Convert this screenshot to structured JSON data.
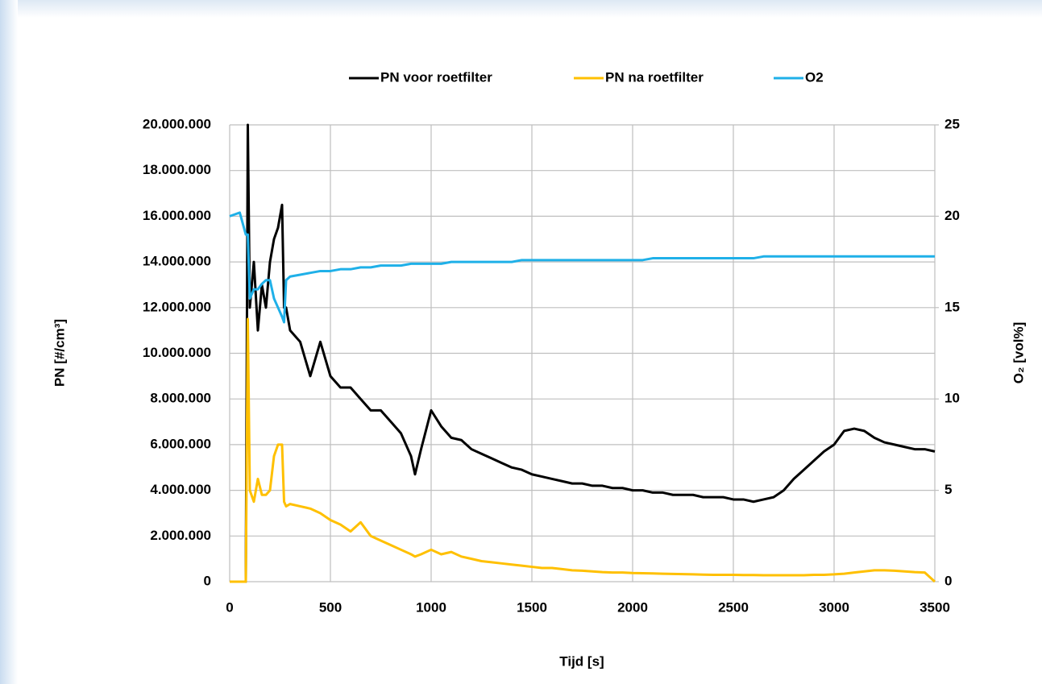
{
  "chart_data": {
    "type": "line",
    "x_label": "Tijd [s]",
    "y_label": "PN [#/cm³]",
    "y2_label": "O₂ [vol%]",
    "legend": "top",
    "grid": true,
    "xlim": [
      0,
      3500
    ],
    "xticks": [
      0,
      500,
      1000,
      1500,
      2000,
      2500,
      3000,
      3500
    ],
    "ylim": [
      0,
      20000000
    ],
    "yticks": [
      0,
      {
        "value": 2000000,
        "label": "2.000.000"
      },
      {
        "value": 4000000,
        "label": "4.000.000"
      },
      {
        "value": 6000000,
        "label": "6.000.000"
      },
      {
        "value": 8000000,
        "label": "8.000.000"
      },
      {
        "value": 10000000,
        "label": "10.000.000"
      },
      {
        "value": 12000000,
        "label": "12.000.000"
      },
      {
        "value": 14000000,
        "label": "14.000.000"
      },
      {
        "value": 16000000,
        "label": "16.000.000"
      },
      {
        "value": 18000000,
        "label": "18.000.000"
      },
      {
        "value": 20000000,
        "label": "20.000.000"
      }
    ],
    "y2lim": [
      0,
      25
    ],
    "y2ticks": [
      0,
      5,
      10,
      15,
      20,
      25
    ],
    "x": [
      0,
      50,
      80,
      90,
      100,
      120,
      140,
      160,
      180,
      200,
      220,
      240,
      260,
      270,
      280,
      300,
      350,
      400,
      450,
      500,
      550,
      600,
      650,
      700,
      750,
      800,
      850,
      900,
      920,
      950,
      1000,
      1050,
      1100,
      1150,
      1200,
      1250,
      1300,
      1350,
      1400,
      1450,
      1500,
      1550,
      1600,
      1650,
      1700,
      1750,
      1800,
      1850,
      1900,
      1950,
      2000,
      2050,
      2100,
      2150,
      2200,
      2250,
      2300,
      2350,
      2400,
      2450,
      2500,
      2550,
      2600,
      2650,
      2700,
      2750,
      2800,
      2850,
      2900,
      2950,
      3000,
      3050,
      3100,
      3150,
      3200,
      3250,
      3300,
      3350,
      3400,
      3450,
      3500
    ],
    "series": [
      {
        "name": "PN voor roetfilter",
        "color": "#000000",
        "values": [
          0,
          0,
          0,
          20000000,
          12000000,
          14000000,
          11000000,
          13000000,
          12000000,
          14000000,
          15000000,
          15500000,
          16500000,
          12000000,
          12000000,
          11000000,
          10500000,
          9000000,
          10500000,
          9000000,
          8500000,
          8500000,
          8000000,
          7500000,
          7500000,
          7000000,
          6500000,
          5500000,
          4700000,
          5800000,
          7500000,
          6800000,
          6300000,
          6200000,
          5800000,
          5600000,
          5400000,
          5200000,
          5000000,
          4900000,
          4700000,
          4600000,
          4500000,
          4400000,
          4300000,
          4300000,
          4200000,
          4200000,
          4100000,
          4100000,
          4000000,
          4000000,
          3900000,
          3900000,
          3800000,
          3800000,
          3800000,
          3700000,
          3700000,
          3700000,
          3600000,
          3600000,
          3500000,
          3600000,
          3700000,
          4000000,
          4500000,
          4900000,
          5300000,
          5700000,
          6000000,
          6600000,
          6700000,
          6600000,
          6300000,
          6100000,
          6000000,
          5900000,
          5800000,
          5800000,
          5700000
        ]
      },
      {
        "name": "PN na roetfilter",
        "color": "#ffc000",
        "values": [
          0,
          0,
          0,
          11500000,
          4000000,
          3500000,
          4500000,
          3800000,
          3800000,
          4000000,
          5500000,
          6000000,
          6000000,
          3500000,
          3300000,
          3400000,
          3300000,
          3200000,
          3000000,
          2700000,
          2500000,
          2200000,
          2600000,
          2000000,
          1800000,
          1600000,
          1400000,
          1200000,
          1100000,
          1200000,
          1400000,
          1200000,
          1300000,
          1100000,
          1000000,
          900000,
          850000,
          800000,
          750000,
          700000,
          650000,
          600000,
          600000,
          550000,
          500000,
          480000,
          450000,
          420000,
          400000,
          400000,
          380000,
          370000,
          360000,
          350000,
          340000,
          330000,
          320000,
          310000,
          300000,
          300000,
          300000,
          290000,
          290000,
          280000,
          280000,
          280000,
          280000,
          280000,
          300000,
          300000,
          320000,
          350000,
          400000,
          450000,
          500000,
          500000,
          480000,
          450000,
          420000,
          400000,
          0
        ]
      },
      {
        "name": "O2",
        "color": "#1fb0e8",
        "axis": "y2",
        "values": [
          20,
          20.2,
          19,
          19,
          15.5,
          16,
          16,
          16.3,
          16.5,
          16.5,
          15.5,
          15,
          14.5,
          14.2,
          16.5,
          16.7,
          16.8,
          16.9,
          17,
          17,
          17.1,
          17.1,
          17.2,
          17.2,
          17.3,
          17.3,
          17.3,
          17.4,
          17.4,
          17.4,
          17.4,
          17.4,
          17.5,
          17.5,
          17.5,
          17.5,
          17.5,
          17.5,
          17.5,
          17.6,
          17.6,
          17.6,
          17.6,
          17.6,
          17.6,
          17.6,
          17.6,
          17.6,
          17.6,
          17.6,
          17.6,
          17.6,
          17.7,
          17.7,
          17.7,
          17.7,
          17.7,
          17.7,
          17.7,
          17.7,
          17.7,
          17.7,
          17.7,
          17.8,
          17.8,
          17.8,
          17.8,
          17.8,
          17.8,
          17.8,
          17.8,
          17.8,
          17.8,
          17.8,
          17.8,
          17.8,
          17.8,
          17.8,
          17.8,
          17.8,
          17.8
        ]
      }
    ]
  }
}
